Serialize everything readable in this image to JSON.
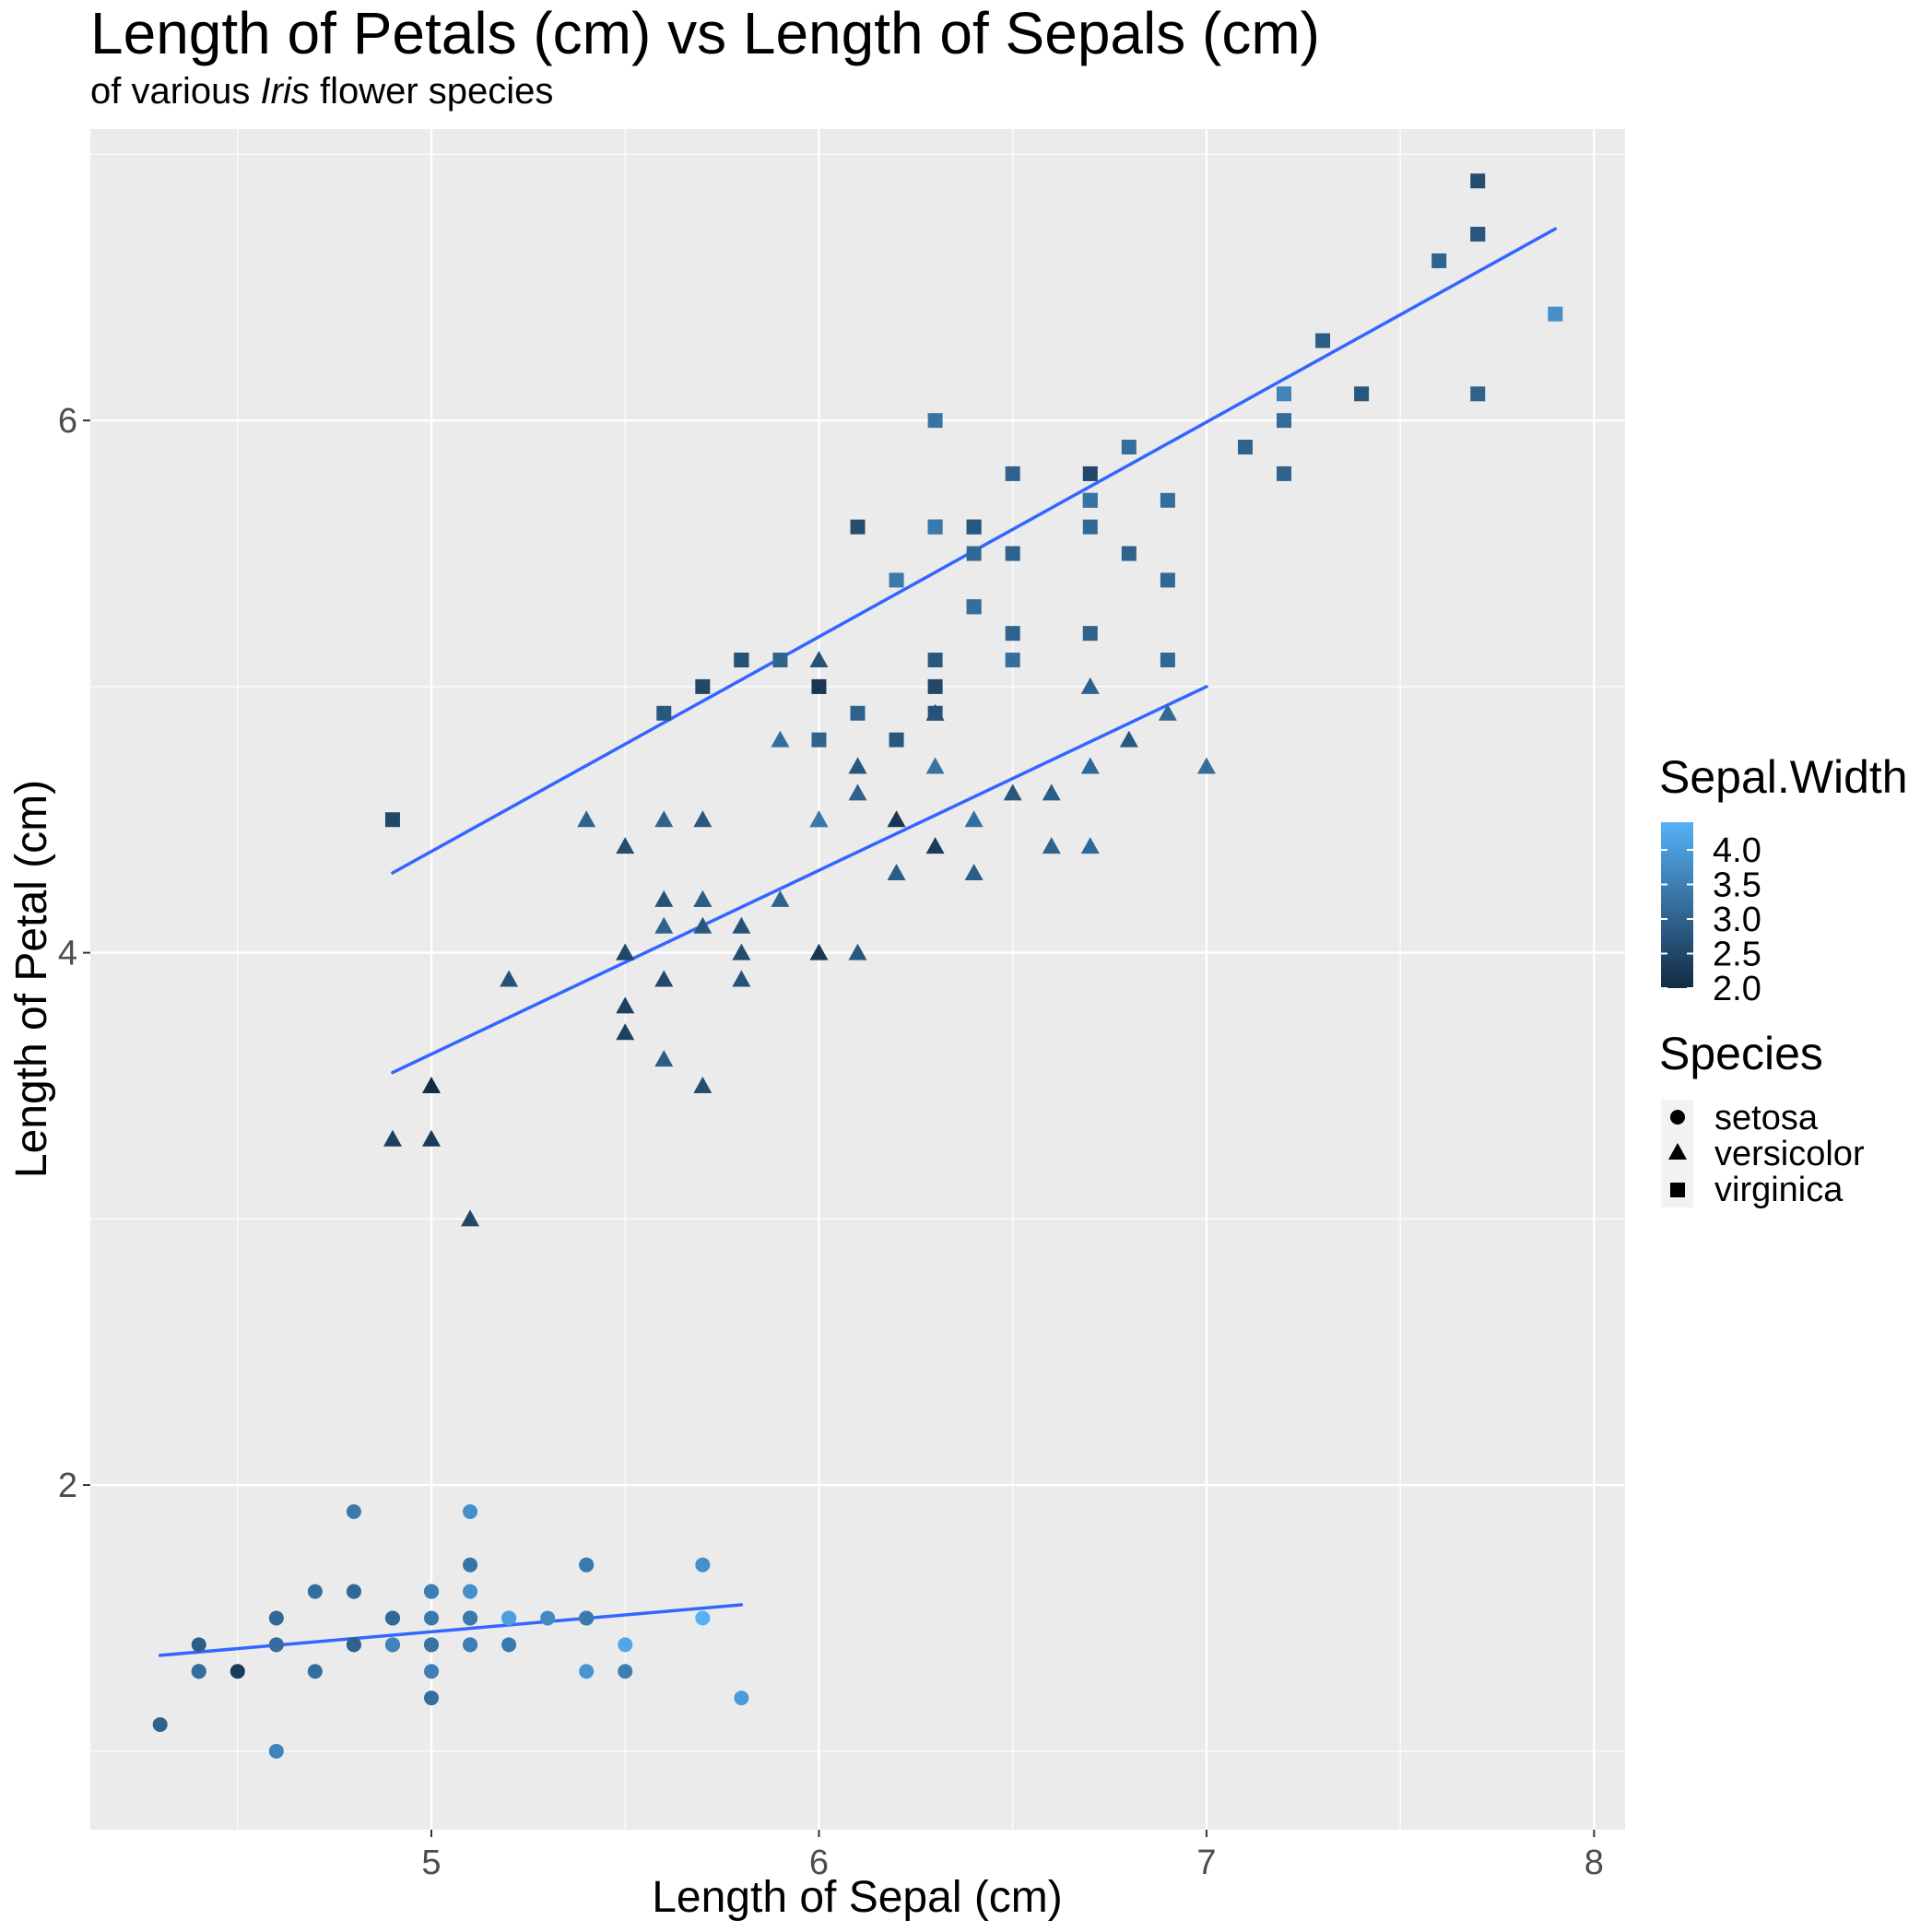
{
  "chart_data": {
    "type": "scatter",
    "title": "Length of Petals (cm) vs Length of Sepals (cm)",
    "subtitle": {
      "pre": "of various ",
      "italic": "Iris",
      "post": " flower species"
    },
    "xlabel": "Length of Sepal (cm)",
    "ylabel": "Length of Petal (cm)",
    "xlim": [
      4.12,
      8.08
    ],
    "ylim": [
      0.705,
      7.095
    ],
    "x_ticks": [
      5,
      6,
      7,
      8
    ],
    "y_ticks": [
      2,
      4,
      6
    ],
    "x_tick_labels": [
      "5",
      "6",
      "7",
      "8"
    ],
    "y_tick_labels": [
      "2",
      "4",
      "6"
    ],
    "grid": true,
    "legend_position": "right",
    "color_scale": {
      "title": "Sepal.Width",
      "low": "#132B43",
      "high": "#56B1F7",
      "range": [
        2.0,
        4.4
      ],
      "breaks": [
        2.0,
        2.5,
        3.0,
        3.5,
        4.0
      ],
      "labels": [
        "2.0",
        "2.5",
        "3.0",
        "3.5",
        "4.0"
      ]
    },
    "shape_legend": {
      "title": "Species",
      "entries": [
        {
          "label": "setosa",
          "shape": "circle"
        },
        {
          "label": "versicolor",
          "shape": "triangle"
        },
        {
          "label": "virginica",
          "shape": "square"
        }
      ]
    },
    "trend_color": "#3366FF",
    "trend_lines": [
      {
        "species": "setosa",
        "x": [
          4.3,
          5.8
        ],
        "y": [
          1.36,
          1.55
        ]
      },
      {
        "species": "versicolor",
        "x": [
          4.9,
          7.0
        ],
        "y": [
          3.55,
          5.0
        ]
      },
      {
        "species": "virginica",
        "x": [
          4.9,
          7.9
        ],
        "y": [
          4.3,
          6.72
        ]
      }
    ],
    "series": [
      {
        "species": "setosa",
        "shape": "circle",
        "points": [
          [
            5.1,
            1.4,
            3.5
          ],
          [
            4.9,
            1.4,
            3.0
          ],
          [
            4.7,
            1.3,
            3.2
          ],
          [
            4.6,
            1.5,
            3.1
          ],
          [
            5.0,
            1.4,
            3.6
          ],
          [
            5.4,
            1.7,
            3.9
          ],
          [
            4.6,
            1.4,
            3.4
          ],
          [
            5.0,
            1.5,
            3.4
          ],
          [
            4.4,
            1.4,
            2.9
          ],
          [
            4.9,
            1.5,
            3.1
          ],
          [
            5.4,
            1.5,
            3.7
          ],
          [
            4.8,
            1.6,
            3.4
          ],
          [
            4.8,
            1.4,
            3.0
          ],
          [
            4.3,
            1.1,
            3.0
          ],
          [
            5.8,
            1.2,
            4.0
          ],
          [
            5.7,
            1.5,
            4.4
          ],
          [
            5.4,
            1.3,
            3.9
          ],
          [
            5.1,
            1.4,
            3.5
          ],
          [
            5.7,
            1.7,
            3.8
          ],
          [
            5.1,
            1.5,
            3.8
          ],
          [
            5.4,
            1.7,
            3.4
          ],
          [
            5.1,
            1.5,
            3.7
          ],
          [
            4.6,
            1.0,
            3.6
          ],
          [
            5.1,
            1.7,
            3.3
          ],
          [
            4.8,
            1.9,
            3.4
          ],
          [
            5.0,
            1.6,
            3.0
          ],
          [
            5.0,
            1.6,
            3.4
          ],
          [
            5.2,
            1.5,
            3.5
          ],
          [
            5.2,
            1.4,
            3.4
          ],
          [
            4.7,
            1.6,
            3.2
          ],
          [
            4.8,
            1.6,
            3.1
          ],
          [
            5.4,
            1.5,
            3.4
          ],
          [
            5.2,
            1.5,
            4.1
          ],
          [
            5.5,
            1.4,
            4.2
          ],
          [
            4.9,
            1.5,
            3.1
          ],
          [
            5.0,
            1.2,
            3.2
          ],
          [
            5.5,
            1.3,
            3.5
          ],
          [
            4.9,
            1.4,
            3.6
          ],
          [
            4.4,
            1.3,
            3.0
          ],
          [
            5.1,
            1.5,
            3.4
          ],
          [
            5.0,
            1.3,
            3.5
          ],
          [
            4.5,
            1.3,
            2.3
          ],
          [
            4.4,
            1.3,
            3.2
          ],
          [
            5.0,
            1.6,
            3.5
          ],
          [
            5.1,
            1.9,
            3.8
          ],
          [
            4.8,
            1.4,
            3.0
          ],
          [
            5.1,
            1.6,
            3.8
          ],
          [
            4.6,
            1.4,
            3.2
          ],
          [
            5.3,
            1.5,
            3.7
          ],
          [
            5.0,
            1.4,
            3.3
          ]
        ]
      },
      {
        "species": "versicolor",
        "shape": "triangle",
        "points": [
          [
            7.0,
            4.7,
            3.2
          ],
          [
            6.4,
            4.5,
            3.2
          ],
          [
            6.9,
            4.9,
            3.1
          ],
          [
            5.5,
            4.0,
            2.3
          ],
          [
            6.5,
            4.6,
            2.8
          ],
          [
            5.7,
            4.5,
            2.8
          ],
          [
            6.3,
            4.7,
            3.3
          ],
          [
            4.9,
            3.3,
            2.4
          ],
          [
            6.6,
            4.6,
            2.9
          ],
          [
            5.2,
            3.9,
            2.7
          ],
          [
            5.0,
            3.5,
            2.0
          ],
          [
            5.9,
            4.2,
            3.0
          ],
          [
            6.0,
            4.0,
            2.2
          ],
          [
            6.1,
            4.7,
            2.9
          ],
          [
            5.6,
            3.6,
            2.9
          ],
          [
            6.7,
            4.4,
            3.1
          ],
          [
            5.6,
            4.5,
            3.0
          ],
          [
            5.8,
            4.1,
            2.7
          ],
          [
            6.2,
            4.5,
            2.2
          ],
          [
            5.6,
            3.9,
            2.5
          ],
          [
            5.9,
            4.8,
            3.2
          ],
          [
            6.1,
            4.0,
            2.8
          ],
          [
            6.3,
            4.9,
            2.5
          ],
          [
            6.1,
            4.7,
            2.8
          ],
          [
            6.4,
            4.3,
            2.9
          ],
          [
            6.6,
            4.4,
            3.0
          ],
          [
            6.8,
            4.8,
            2.8
          ],
          [
            6.7,
            5.0,
            3.0
          ],
          [
            6.0,
            4.5,
            2.9
          ],
          [
            5.7,
            3.5,
            2.6
          ],
          [
            5.5,
            3.8,
            2.4
          ],
          [
            5.5,
            3.7,
            2.4
          ],
          [
            5.8,
            3.9,
            2.7
          ],
          [
            6.0,
            5.1,
            2.7
          ],
          [
            5.4,
            4.5,
            3.0
          ],
          [
            6.0,
            4.5,
            3.4
          ],
          [
            6.7,
            4.7,
            3.1
          ],
          [
            6.3,
            4.4,
            2.3
          ],
          [
            5.6,
            4.1,
            3.0
          ],
          [
            5.5,
            4.0,
            2.5
          ],
          [
            5.5,
            4.4,
            2.6
          ],
          [
            6.1,
            4.6,
            3.0
          ],
          [
            5.8,
            4.0,
            2.6
          ],
          [
            5.0,
            3.3,
            2.3
          ],
          [
            5.6,
            4.2,
            2.7
          ],
          [
            5.7,
            4.2,
            3.0
          ],
          [
            5.7,
            4.2,
            2.9
          ],
          [
            6.2,
            4.3,
            2.9
          ],
          [
            5.1,
            3.0,
            2.5
          ],
          [
            5.7,
            4.1,
            2.8
          ]
        ]
      },
      {
        "species": "virginica",
        "shape": "square",
        "points": [
          [
            6.3,
            6.0,
            3.3
          ],
          [
            5.8,
            5.1,
            2.7
          ],
          [
            7.1,
            5.9,
            3.0
          ],
          [
            6.3,
            5.6,
            2.9
          ],
          [
            6.5,
            5.8,
            3.0
          ],
          [
            7.6,
            6.6,
            3.0
          ],
          [
            4.9,
            4.5,
            2.5
          ],
          [
            7.3,
            6.3,
            2.9
          ],
          [
            6.7,
            5.8,
            2.5
          ],
          [
            7.2,
            6.1,
            3.6
          ],
          [
            6.5,
            5.1,
            3.2
          ],
          [
            6.4,
            5.3,
            2.7
          ],
          [
            6.8,
            5.5,
            3.0
          ],
          [
            5.7,
            5.0,
            2.5
          ],
          [
            5.8,
            5.1,
            2.8
          ],
          [
            6.4,
            5.3,
            3.2
          ],
          [
            6.5,
            5.5,
            3.0
          ],
          [
            7.7,
            6.7,
            3.8
          ],
          [
            7.7,
            6.9,
            2.6
          ],
          [
            6.0,
            5.0,
            2.2
          ],
          [
            6.9,
            5.7,
            3.2
          ],
          [
            5.6,
            4.9,
            2.8
          ],
          [
            7.7,
            6.7,
            2.8
          ],
          [
            6.3,
            4.9,
            2.7
          ],
          [
            6.7,
            5.7,
            3.3
          ],
          [
            7.2,
            6.0,
            3.2
          ],
          [
            6.2,
            4.8,
            2.8
          ],
          [
            6.1,
            4.9,
            3.0
          ],
          [
            6.4,
            5.6,
            2.8
          ],
          [
            7.2,
            5.8,
            3.0
          ],
          [
            7.4,
            6.1,
            2.8
          ],
          [
            7.9,
            6.4,
            3.8
          ],
          [
            6.4,
            5.6,
            2.8
          ],
          [
            6.3,
            5.1,
            2.8
          ],
          [
            6.1,
            5.6,
            2.6
          ],
          [
            7.7,
            6.1,
            3.0
          ],
          [
            6.3,
            5.6,
            3.4
          ],
          [
            6.4,
            5.5,
            3.1
          ],
          [
            6.0,
            4.8,
            3.0
          ],
          [
            6.9,
            5.4,
            3.1
          ],
          [
            6.7,
            5.6,
            3.1
          ],
          [
            6.9,
            5.1,
            3.1
          ],
          [
            5.8,
            5.1,
            2.7
          ],
          [
            6.8,
            5.9,
            3.2
          ],
          [
            6.7,
            5.7,
            3.3
          ],
          [
            6.7,
            5.2,
            3.0
          ],
          [
            6.3,
            5.0,
            2.5
          ],
          [
            6.5,
            5.2,
            3.0
          ],
          [
            6.2,
            5.4,
            3.4
          ],
          [
            5.9,
            5.1,
            3.0
          ]
        ]
      }
    ]
  }
}
